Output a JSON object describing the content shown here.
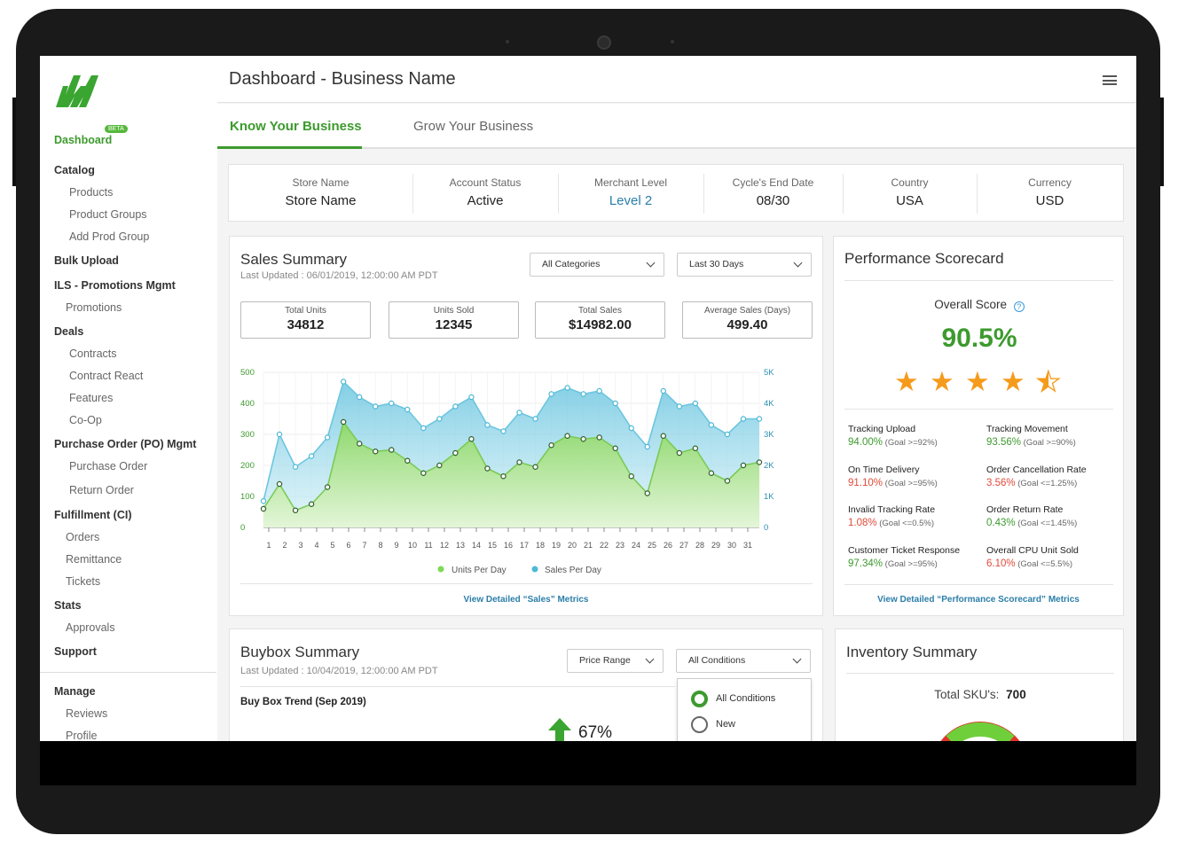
{
  "window": {
    "title": "Dashboard - Business Name"
  },
  "sidebar": {
    "badge": "BETA",
    "items": [
      {
        "label": "Dashboard"
      },
      {
        "label": "Catalog"
      },
      {
        "label": "Products"
      },
      {
        "label": "Product Groups"
      },
      {
        "label": "Add Prod Group"
      },
      {
        "label": "Bulk Upload"
      },
      {
        "label": "ILS - Promotions Mgmt"
      },
      {
        "label": "Promotions"
      },
      {
        "label": "Deals"
      },
      {
        "label": "Contracts"
      },
      {
        "label": "Contract React"
      },
      {
        "label": "Features"
      },
      {
        "label": "Co-Op"
      },
      {
        "label": "Purchase Order (PO) Mgmt"
      },
      {
        "label": "Purchase Order"
      },
      {
        "label": "Return Order"
      },
      {
        "label": "Fulfillment (CI)"
      },
      {
        "label": "Orders"
      },
      {
        "label": "Remittance"
      },
      {
        "label": "Tickets"
      },
      {
        "label": "Stats"
      },
      {
        "label": "Approvals"
      },
      {
        "label": "Support"
      },
      {
        "label": "Manage"
      },
      {
        "label": "Reviews"
      },
      {
        "label": "Profile"
      }
    ]
  },
  "tabs": [
    {
      "label": "Know Your Business"
    },
    {
      "label": "Grow Your Business"
    }
  ],
  "info": [
    {
      "label": "Store Name",
      "value": "Store Name"
    },
    {
      "label": "Account Status",
      "value": "Active"
    },
    {
      "label": "Merchant Level",
      "value": "Level 2"
    },
    {
      "label": "Cycle's End Date",
      "value": "08/30"
    },
    {
      "label": "Country",
      "value": "USA"
    },
    {
      "label": "Currency",
      "value": "USD"
    }
  ],
  "colors": {
    "accent": "#3d9a2e",
    "link": "#2b7ea8",
    "units": "#8fd86e",
    "sales": "#6cc6e0",
    "bad": "#e04a3a",
    "star": "#f59b1c"
  },
  "sales": {
    "title": "Sales Summary",
    "updated": "Last Updated : 06/01/2019,  12:00:00 AM PDT",
    "category_select": "All Categories",
    "range_select": "Last 30 Days",
    "kpis": [
      {
        "label": "Total Units",
        "value": "34812"
      },
      {
        "label": "Units Sold",
        "value": "12345"
      },
      {
        "label": "Total Sales",
        "value": "$14982.00"
      },
      {
        "label": "Average Sales (Days)",
        "value": "499.40"
      }
    ],
    "link": "View Detailed “Sales” Metrics"
  },
  "chart_data": {
    "type": "area",
    "x": [
      1,
      2,
      3,
      4,
      5,
      6,
      7,
      8,
      9,
      10,
      11,
      12,
      13,
      14,
      15,
      16,
      17,
      18,
      19,
      20,
      21,
      22,
      23,
      24,
      25,
      26,
      27,
      28,
      29,
      30,
      31,
      32
    ],
    "x_tick_labels": [
      "1",
      "2",
      "3",
      "4",
      "5",
      "6",
      "7",
      "8",
      "9",
      "10",
      "11",
      "12",
      "13",
      "14",
      "15",
      "16",
      "17",
      "18",
      "19",
      "20",
      "21",
      "22",
      "23",
      "24",
      "25",
      "26",
      "27",
      "28",
      "29",
      "30",
      "31"
    ],
    "y_left_ticks": [
      "500",
      "400",
      "300",
      "200",
      "100",
      "0"
    ],
    "y_right_ticks": [
      "5K",
      "4K",
      "3K",
      "2K",
      "1K",
      "0"
    ],
    "ylim": [
      0,
      500
    ],
    "y2lim": [
      0,
      5000
    ],
    "series": [
      {
        "name": "Sales Per Day",
        "axis": "right",
        "values": [
          850,
          3000,
          1950,
          2300,
          2900,
          4700,
          4200,
          3900,
          4000,
          3800,
          3200,
          3500,
          3900,
          4200,
          3300,
          3100,
          3700,
          3500,
          4300,
          4500,
          4300,
          4400,
          4000,
          3200,
          2600,
          4400,
          3900,
          4000,
          3300,
          3000,
          3500,
          3500
        ]
      },
      {
        "name": "Units Per Day",
        "axis": "left",
        "values": [
          60,
          140,
          55,
          75,
          130,
          340,
          270,
          245,
          250,
          215,
          175,
          200,
          240,
          285,
          190,
          165,
          210,
          195,
          265,
          295,
          285,
          290,
          255,
          165,
          110,
          295,
          240,
          255,
          175,
          150,
          200,
          210
        ]
      }
    ]
  },
  "scorecard": {
    "title": "Performance Scorecard",
    "overall_label": "Overall Score",
    "overall_value": "90.5%",
    "stars": 4.5,
    "metrics": [
      {
        "name": "Tracking Upload",
        "value": "94.00%",
        "goal": "(Goal >=92%)",
        "status": "good"
      },
      {
        "name": "Tracking Movement",
        "value": "93.56%",
        "goal": "(Goal >=90%)",
        "status": "good"
      },
      {
        "name": "On Time Delivery",
        "value": "91.10%",
        "goal": "(Goal >=95%)",
        "status": "bad"
      },
      {
        "name": "Order Cancellation Rate",
        "value": "3.56%",
        "goal": "(Goal <=1.25%)",
        "status": "bad"
      },
      {
        "name": "Invalid Tracking Rate",
        "value": "1.08%",
        "goal": "(Goal <=0.5%)",
        "status": "bad"
      },
      {
        "name": "Order Return Rate",
        "value": "0.43%",
        "goal": "(Goal <=1.45%)",
        "status": "good"
      },
      {
        "name": "Customer Ticket Response",
        "value": "97.34%",
        "goal": "(Goal >=95%)",
        "status": "good"
      },
      {
        "name": "Overall CPU Unit Sold",
        "value": "6.10%",
        "goal": "(Goal <=5.5%)",
        "status": "bad"
      }
    ],
    "link": "View Detailed “Performance Scorecard” Metrics"
  },
  "buybox": {
    "title": "Buybox Summary",
    "updated": "Last Updated : 10/04/2019,  12:00:00 AM PDT",
    "price_select": "Price Range",
    "condition_select": "All Conditions",
    "trend_label": "Buy Box Trend (Sep 2019)",
    "trend_value": "67%",
    "condition_options": [
      {
        "label": "All Conditions",
        "selected": true
      },
      {
        "label": "New",
        "selected": false
      }
    ]
  },
  "inventory": {
    "title": "Inventory Summary",
    "sku_label": "Total SKU's:",
    "sku_value": "700"
  }
}
